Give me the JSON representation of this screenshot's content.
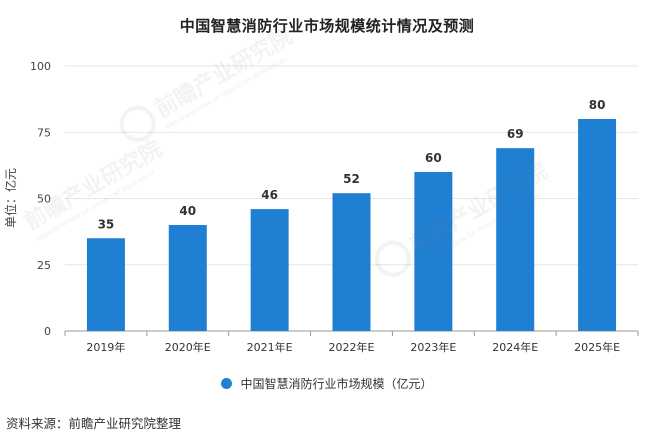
{
  "chart_data": {
    "type": "bar",
    "title": "中国智慧消防行业市场规模统计情况及预测",
    "ylabel": "单位：亿元",
    "xlabel": "",
    "categories": [
      "2019年",
      "2020年E",
      "2021年E",
      "2022年E",
      "2023年E",
      "2024年E",
      "2025年E"
    ],
    "series": [
      {
        "name": "中国智慧消防行业市场规模（亿元）",
        "values": [
          35,
          40,
          46,
          52,
          60,
          69,
          80
        ]
      }
    ],
    "ylim": [
      0,
      100
    ],
    "yticks": [
      0,
      25,
      50,
      75,
      100
    ],
    "grid": true,
    "legend_position": "bottom",
    "bar_color": "#1f7fd3"
  },
  "source_note": "资料来源：前瞻产业研究院整理",
  "watermark": {
    "brand": "前瞻产业研究院",
    "sub": "PRESENTATION OF INDUSTRY RESEARCH"
  }
}
